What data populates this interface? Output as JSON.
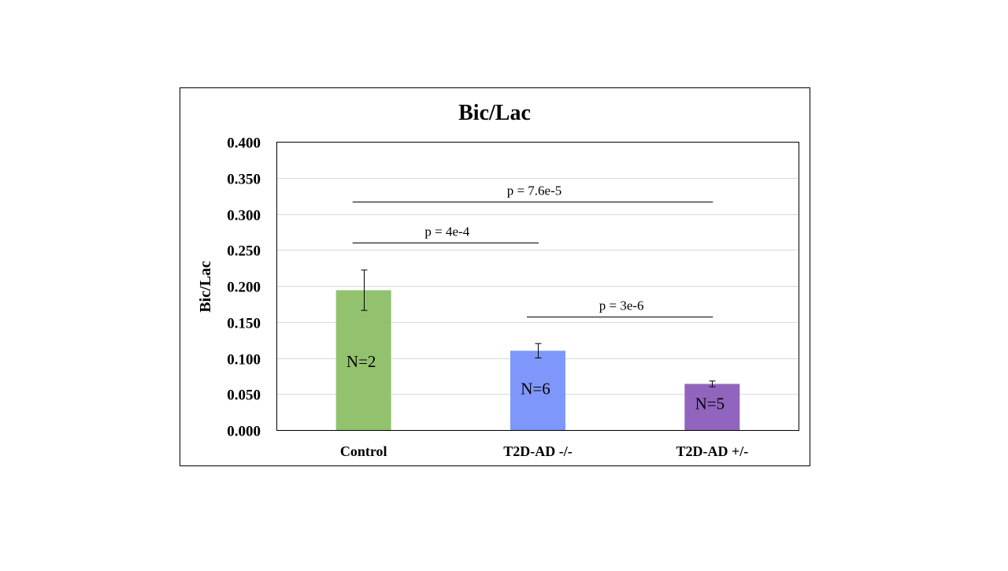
{
  "chart_data": {
    "type": "bar",
    "title": "Bic/Lac",
    "xlabel": "",
    "ylabel": "Bic/Lac",
    "ylim": [
      0,
      0.4
    ],
    "yticks": [
      "0.000",
      "0.050",
      "0.100",
      "0.150",
      "0.200",
      "0.250",
      "0.300",
      "0.350",
      "0.400"
    ],
    "ytick_values": [
      0,
      0.05,
      0.1,
      0.15,
      0.2,
      0.25,
      0.3,
      0.35,
      0.4
    ],
    "grid": true,
    "categories": [
      "Control",
      "T2D-AD -/-",
      "T2D-AD +/-"
    ],
    "values": [
      0.194,
      0.11,
      0.064
    ],
    "errors": [
      0.028,
      0.01,
      0.004
    ],
    "n_labels": [
      "N=2",
      "N=6",
      "N=5"
    ],
    "colors": [
      "#93c26f",
      "#7f97fb",
      "#9165bd"
    ],
    "significance": [
      {
        "from": 0,
        "to": 2,
        "y": 0.317,
        "label": "p = 7.6e-5"
      },
      {
        "from": 0,
        "to": 1,
        "y": 0.26,
        "label": "p = 4e-4"
      },
      {
        "from": 1,
        "to": 2,
        "y": 0.157,
        "label": "p = 3e-6"
      }
    ]
  }
}
